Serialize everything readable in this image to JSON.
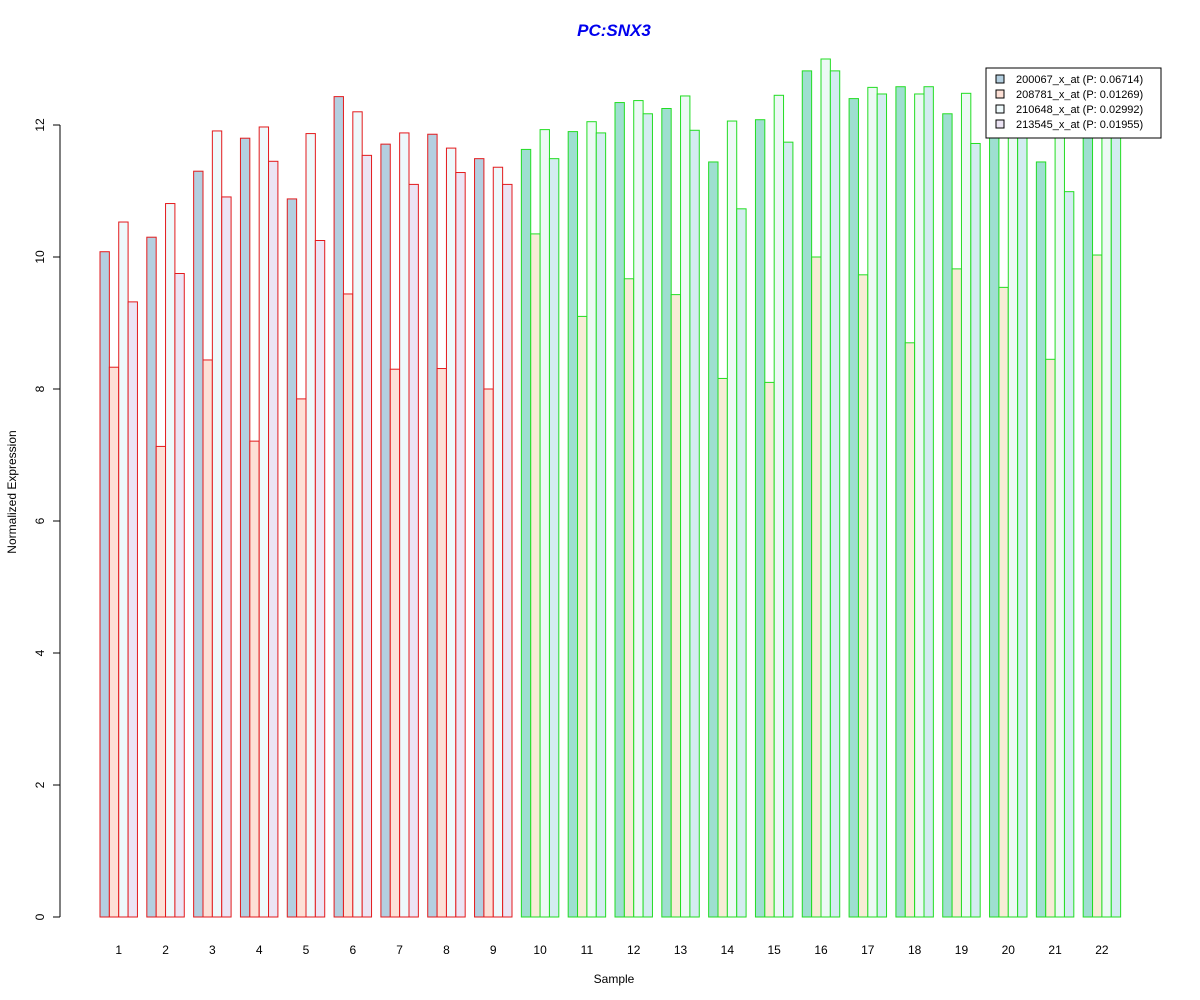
{
  "chart_data": {
    "type": "bar",
    "title": "PC:SNX3",
    "xlabel": "Sample",
    "ylabel": "Normalized Expression",
    "ylim": [
      0,
      13
    ],
    "y_ticks": [
      0,
      2,
      4,
      6,
      8,
      10,
      12
    ],
    "grid": false,
    "legend_position": "top-right",
    "categories": [
      "1",
      "2",
      "3",
      "4",
      "5",
      "6",
      "7",
      "8",
      "9",
      "10",
      "11",
      "12",
      "13",
      "14",
      "15",
      "16",
      "17",
      "18",
      "19",
      "20",
      "21",
      "22"
    ],
    "group_outline_colors": [
      "#e31a1c",
      "#e31a1c",
      "#e31a1c",
      "#e31a1c",
      "#e31a1c",
      "#e31a1c",
      "#e31a1c",
      "#e31a1c",
      "#e31a1c",
      "#22dd22",
      "#22dd22",
      "#22dd22",
      "#22dd22",
      "#22dd22",
      "#22dd22",
      "#22dd22",
      "#22dd22",
      "#22dd22",
      "#22dd22",
      "#22dd22",
      "#22dd22",
      "#22dd22"
    ],
    "series": [
      {
        "name": "200067_x_at (P: 0.06714)",
        "fill_red_group": "#b4cfe0",
        "fill_green_group": "#9edfd0",
        "values": [
          10.08,
          10.3,
          11.3,
          11.8,
          10.88,
          12.43,
          11.71,
          11.86,
          11.49,
          11.63,
          11.9,
          12.34,
          12.25,
          11.44,
          12.08,
          12.82,
          12.4,
          12.58,
          12.17,
          12.1,
          11.44,
          12.05
        ]
      },
      {
        "name": "208781_x_at (P: 0.01269)",
        "fill_red_group": "#fde0d6",
        "fill_green_group": "#f7ecd6",
        "values": [
          8.33,
          7.13,
          8.44,
          7.21,
          7.85,
          9.44,
          8.3,
          8.31,
          8.0,
          10.35,
          9.1,
          9.67,
          9.43,
          8.16,
          8.1,
          10.0,
          9.73,
          8.7,
          9.82,
          9.54,
          8.45,
          10.03
        ]
      },
      {
        "name": "210648_x_at (P: 0.02992)",
        "fill_red_group": "#eef9fb",
        "fill_green_group": "#edf9f5",
        "values": [
          10.53,
          10.81,
          11.91,
          11.97,
          11.87,
          12.2,
          11.88,
          11.65,
          11.36,
          11.93,
          12.05,
          12.37,
          12.44,
          12.06,
          12.45,
          13.0,
          12.57,
          12.47,
          12.48,
          12.3,
          12.25,
          12.4
        ]
      },
      {
        "name": "213545_x_at (P: 0.01955)",
        "fill_red_group": "#ece4f4",
        "fill_green_group": "#d3ecf0",
        "values": [
          9.32,
          9.75,
          10.91,
          11.45,
          10.25,
          11.54,
          11.1,
          11.28,
          11.1,
          11.49,
          11.88,
          12.17,
          11.92,
          10.73,
          11.74,
          12.82,
          12.47,
          12.58,
          11.72,
          12.05,
          10.99,
          12.3
        ]
      }
    ],
    "legend_swatches": [
      "#b4cfe0",
      "#fde0d6",
      "#eef9fb",
      "#ece4f4"
    ],
    "title_color": "#0000ee"
  }
}
